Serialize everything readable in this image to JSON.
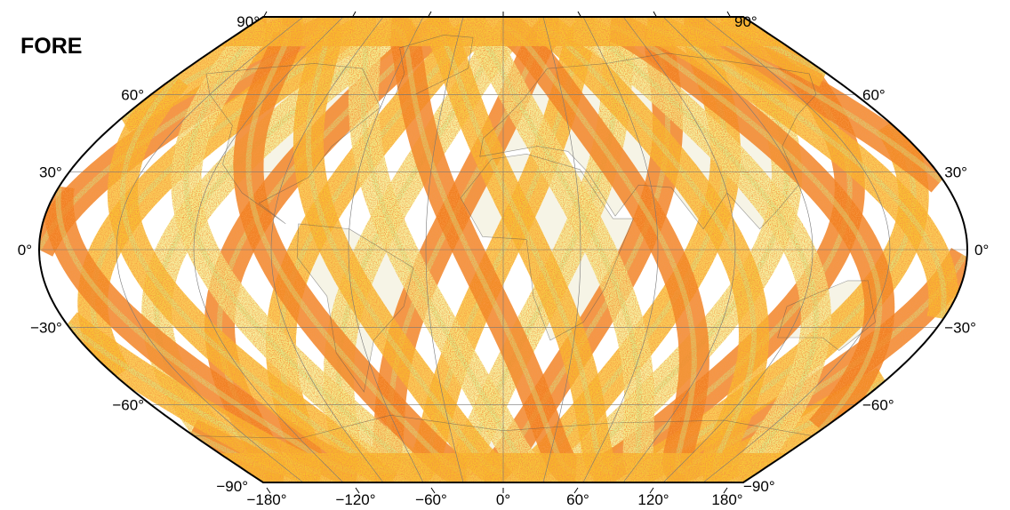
{
  "panel_title": "FORE",
  "map": {
    "projection": "sinusoidal-style equal-area world map",
    "lat_labels_left": [
      "90°",
      "60°",
      "30°",
      "0°",
      "−30°",
      "−60°",
      "−90°"
    ],
    "lat_labels_right": [
      "90°",
      "60°",
      "30°",
      "0°",
      "−30°",
      "−60°",
      "−90°"
    ],
    "lon_labels_bottom": [
      "−180°",
      "−120°",
      "−60°",
      "0°",
      "60°",
      "120°",
      "180°"
    ],
    "lat_values": [
      90,
      60,
      30,
      0,
      -30,
      -60,
      -90
    ],
    "lon_values": [
      -180,
      -120,
      -60,
      0,
      60,
      120,
      180
    ],
    "colors": {
      "swath_high": "#f07a18",
      "swath_mid": "#f8c02a",
      "swath_low": "#f4f08a",
      "swath_min": "#cfef90",
      "land_fill": "#f6f4e6",
      "grid": "#777777",
      "outline": "#000000"
    },
    "swath_count_per_direction": 14
  }
}
